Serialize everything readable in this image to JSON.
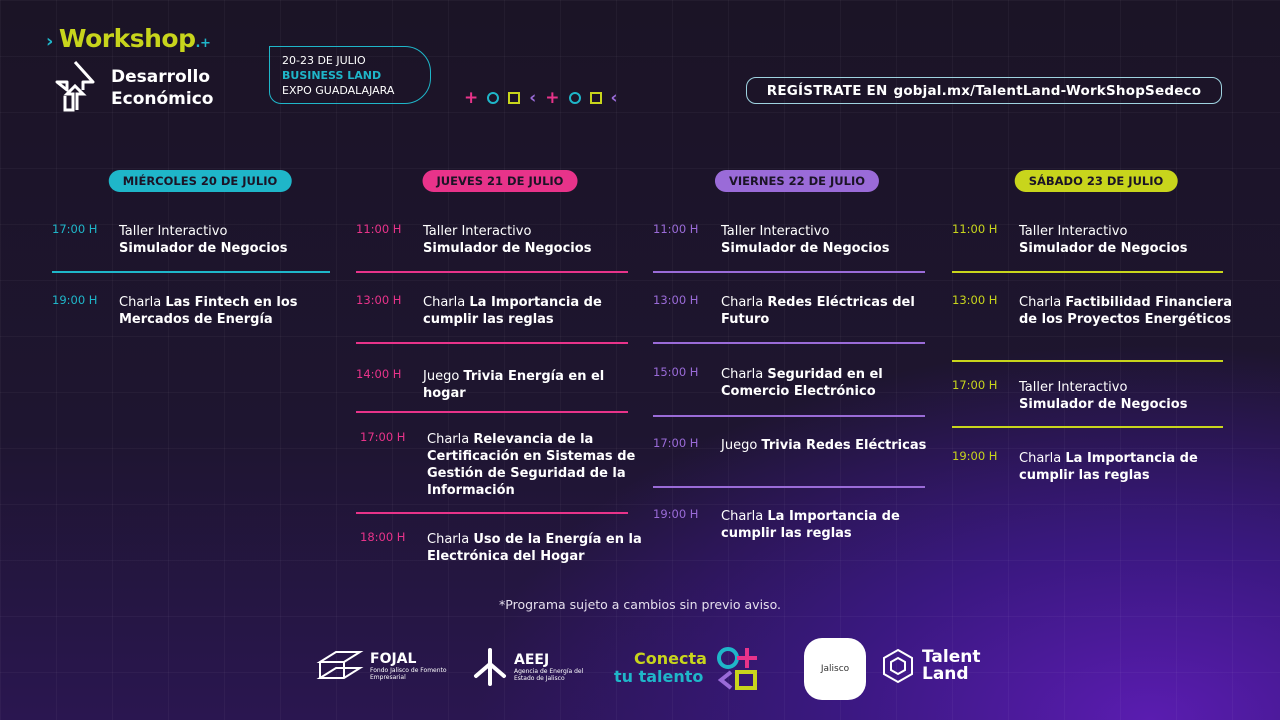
{
  "header": {
    "workshop": "Workshop",
    "title_line1": "Desarrollo",
    "title_line2": "Económico",
    "date": "20-23 DE JULIO",
    "venue": "BUSINESS LAND",
    "place": "EXPO GUADALAJARA",
    "register_label": "REGÍSTRATE EN",
    "register_url": "gobjal.mx/TalentLand-WorkShopSedeco"
  },
  "colors": {
    "cyan": "#1fb6c9",
    "pink": "#e8338a",
    "purple": "#9a6bd8",
    "lime": "#c8d51c"
  },
  "days": [
    {
      "label": "MIÉRCOLES 20 DE JULIO",
      "color": "#1fb6c9",
      "events": [
        {
          "time": "17:00 H",
          "type": "Taller Interactivo",
          "title": "Simulador de Negocios"
        },
        {
          "time": "19:00 H",
          "type": "Charla",
          "title": "Las Fintech en los Mercados de Energía"
        }
      ]
    },
    {
      "label": "JUEVES 21 DE JULIO",
      "color": "#e8338a",
      "events": [
        {
          "time": "11:00 H",
          "type": "Taller Interactivo",
          "title": "Simulador de Negocios"
        },
        {
          "time": "13:00 H",
          "type": "Charla",
          "title": "La Importancia de cumplir las reglas"
        },
        {
          "time": "14:00 H",
          "type": "Juego",
          "title": "Trivia Energía en el hogar"
        },
        {
          "time": "17:00 H",
          "type": "Charla",
          "title": "Relevancia de la Certificación en Sistemas de Gestión de Seguridad de la Información"
        },
        {
          "time": "18:00 H",
          "type": "Charla",
          "title": "Uso de la Energía en la Electrónica del Hogar"
        }
      ]
    },
    {
      "label": "VIERNES 22 DE JULIO",
      "color": "#9a6bd8",
      "events": [
        {
          "time": "11:00 H",
          "type": "Taller Interactivo",
          "title": "Simulador de Negocios"
        },
        {
          "time": "13:00 H",
          "type": "Charla",
          "title": "Redes Eléctricas del Futuro"
        },
        {
          "time": "15:00 H",
          "type": "Charla",
          "title": "Seguridad en el Comercio Electrónico"
        },
        {
          "time": "17:00 H",
          "type": "Juego",
          "title": "Trivia Redes Eléctricas"
        },
        {
          "time": "19:00 H",
          "type": "Charla",
          "title": "La Importancia de cumplir las reglas"
        }
      ]
    },
    {
      "label": "SÁBADO 23 DE JULIO",
      "color": "#c8d51c",
      "events": [
        {
          "time": "11:00 H",
          "type": "Taller Interactivo",
          "title": "Simulador de Negocios"
        },
        {
          "time": "13:00 H",
          "type": "Charla",
          "title": "Factibilidad Financiera de los Proyectos Energéticos"
        },
        {
          "time": "17:00 H",
          "type": "Taller Interactivo",
          "title": "Simulador de Negocios"
        },
        {
          "time": "19:00 H",
          "type": "Charla",
          "title": "La Importancia de cumplir las reglas"
        }
      ]
    }
  ],
  "note": "*Programa sujeto a cambios sin previo aviso.",
  "logos": {
    "fojal": "FOJAL",
    "fojal_sub": "Fondo Jalisco de Fomento Empresarial",
    "aeej": "AEEJ",
    "aeej_sub": "Agencia de Energía del Estado de Jalisco",
    "conecta1": "Conecta",
    "conecta2": "tu talento",
    "jalisco": "Jalisco",
    "talent1": "Talent",
    "talent2": "Land"
  }
}
